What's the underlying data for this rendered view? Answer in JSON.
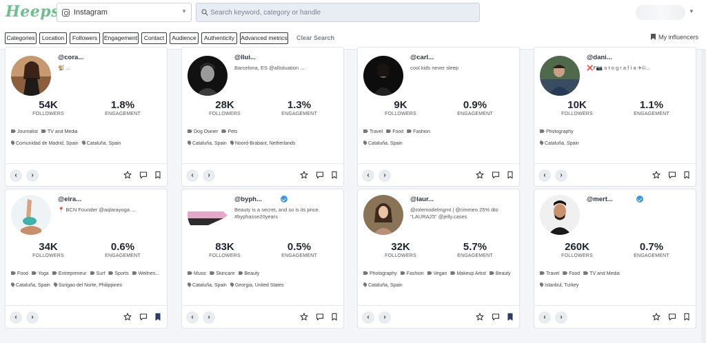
{
  "app": {
    "logo": "Heepsy"
  },
  "header": {
    "platform": "Instagram",
    "search_placeholder": "Search keyword, category or handle"
  },
  "filters": {
    "chips": [
      "Categories",
      "Location",
      "Followers",
      "Engagement",
      "Contact",
      "Audience",
      "Authenticity",
      "Advanced metrics"
    ],
    "clear_label": "Clear Search",
    "my_influencers_label": "My influencers"
  },
  "cards": [
    {
      "handle": "@cora...",
      "verified": false,
      "bio": "🐒 ...",
      "followers": "54K",
      "followers_label": "FOLLOWERS",
      "engagement": "1.8%",
      "engagement_label": "ENGAGEMENT",
      "categories": [
        "Journalist",
        "TV and Media"
      ],
      "locations": [
        "Comunidad de Madrid, Spain",
        "Cataluña, Spain"
      ],
      "saved": false
    },
    {
      "handle": "@llui...",
      "verified": false,
      "bio": "Barcelona, ES @allsituation ...",
      "followers": "28K",
      "followers_label": "FOLLOWERS",
      "engagement": "1.3%",
      "engagement_label": "ENGAGEMENT",
      "categories": [
        "Dog Owner",
        "Pets"
      ],
      "locations": [
        "Cataluña, Spain",
        "Noord-Brabant, Netherlands"
      ],
      "saved": false
    },
    {
      "handle": "@carl...",
      "verified": false,
      "bio": "cool kids never sleep",
      "followers": "9K",
      "followers_label": "FOLLOWERS",
      "engagement": "0.9%",
      "engagement_label": "ENGAGEMENT",
      "categories": [
        "Travel",
        "Food",
        "Fashion"
      ],
      "locations": [
        "Cataluña, Spain"
      ],
      "saved": false
    },
    {
      "handle": "@dani...",
      "verified": false,
      "bio": "❌F📷 o t o g r a f í a ✈©...",
      "followers": "10K",
      "followers_label": "FOLLOWERS",
      "engagement": "1.1%",
      "engagement_label": "ENGAGEMENT",
      "categories": [
        "Photography"
      ],
      "locations": [
        "Cataluña, Spain"
      ],
      "saved": false
    },
    {
      "handle": "@eira...",
      "verified": false,
      "bio": "📍 BCN Founder @aqlarayoga ...",
      "followers": "34K",
      "followers_label": "FOLLOWERS",
      "engagement": "0.6%",
      "engagement_label": "ENGAGEMENT",
      "categories": [
        "Food",
        "Yoga",
        "Entrepreneur",
        "Surf",
        "Sports",
        "Wellnes..."
      ],
      "locations": [
        "Cataluña, Spain",
        "Surigao del Norte, Philippines"
      ],
      "saved": true
    },
    {
      "handle": "@byph...",
      "verified": true,
      "bio": "Beauty is a secret, and so is its price.\n#byphasse20years",
      "followers": "83K",
      "followers_label": "FOLLOWERS",
      "engagement": "0.5%",
      "engagement_label": "ENGAGEMENT",
      "categories": [
        "Music",
        "Skincare",
        "Beauty"
      ],
      "locations": [
        "Cataluña, Spain",
        "Georgia, United States"
      ],
      "saved": false
    },
    {
      "handle": "@laur...",
      "verified": false,
      "bio": "@rolemodelmgmt | @rimmeo 25% dto\n\"LAURA25\" @jelly.cases",
      "followers": "32K",
      "followers_label": "FOLLOWERS",
      "engagement": "5.7%",
      "engagement_label": "ENGAGEMENT",
      "categories": [
        "Photography",
        "Fashion",
        "Vegan",
        "Makeup Artist",
        "Beauty"
      ],
      "locations": [
        "Cataluña, Spain"
      ],
      "saved": true
    },
    {
      "handle": "@mert...",
      "verified": true,
      "bio": "",
      "followers": "260K",
      "followers_label": "FOLLOWERS",
      "engagement": "0.7%",
      "engagement_label": "ENGAGEMENT",
      "categories": [
        "Travel",
        "Food",
        "TV and Media"
      ],
      "locations": [
        "Istanbul, Turkey"
      ],
      "saved": false
    }
  ],
  "colors": {
    "accent": "#6cc08f",
    "verified": "#3897f0",
    "saved": "#2c3e66"
  }
}
